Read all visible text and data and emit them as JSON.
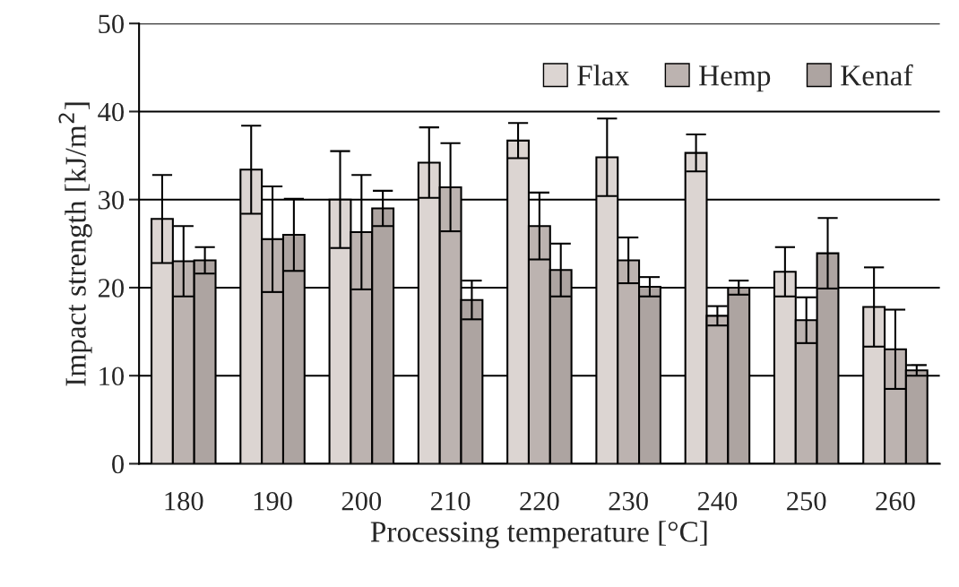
{
  "chart_data": {
    "type": "bar",
    "xlabel": "Processing temperature [°C]",
    "ylabel": "Impact strength [kJ/m$^{2}$]",
    "categories": [
      "180",
      "190",
      "200",
      "210",
      "220",
      "230",
      "240",
      "250",
      "260"
    ],
    "series": [
      {
        "name": "Flax",
        "color": "#dcd5d2",
        "values": [
          27.8,
          33.4,
          30.0,
          34.2,
          36.7,
          34.8,
          35.3,
          21.8,
          17.8
        ],
        "errors": [
          5,
          5,
          5.5,
          4,
          2,
          4.4,
          2.1,
          2.8,
          4.5
        ]
      },
      {
        "name": "Hemp",
        "color": "#bcb3b0",
        "values": [
          23.0,
          25.5,
          26.3,
          31.4,
          27.0,
          23.1,
          16.8,
          16.3,
          13.0
        ],
        "errors": [
          4,
          6,
          6.5,
          5,
          3.8,
          2.6,
          1.1,
          2.6,
          4.5
        ]
      },
      {
        "name": "Kenaf",
        "color": "#ada4a1",
        "values": [
          23.1,
          26.0,
          29.0,
          18.6,
          22.0,
          20.1,
          20.0,
          23.9,
          10.6
        ],
        "errors": [
          1.5,
          4.1,
          2,
          2.2,
          3,
          1.1,
          0.8,
          4,
          0.6
        ]
      }
    ],
    "ylim": [
      0,
      50
    ],
    "yticks": [
      0,
      10,
      20,
      30,
      40,
      50
    ],
    "grid": "y",
    "legend": "top right"
  }
}
